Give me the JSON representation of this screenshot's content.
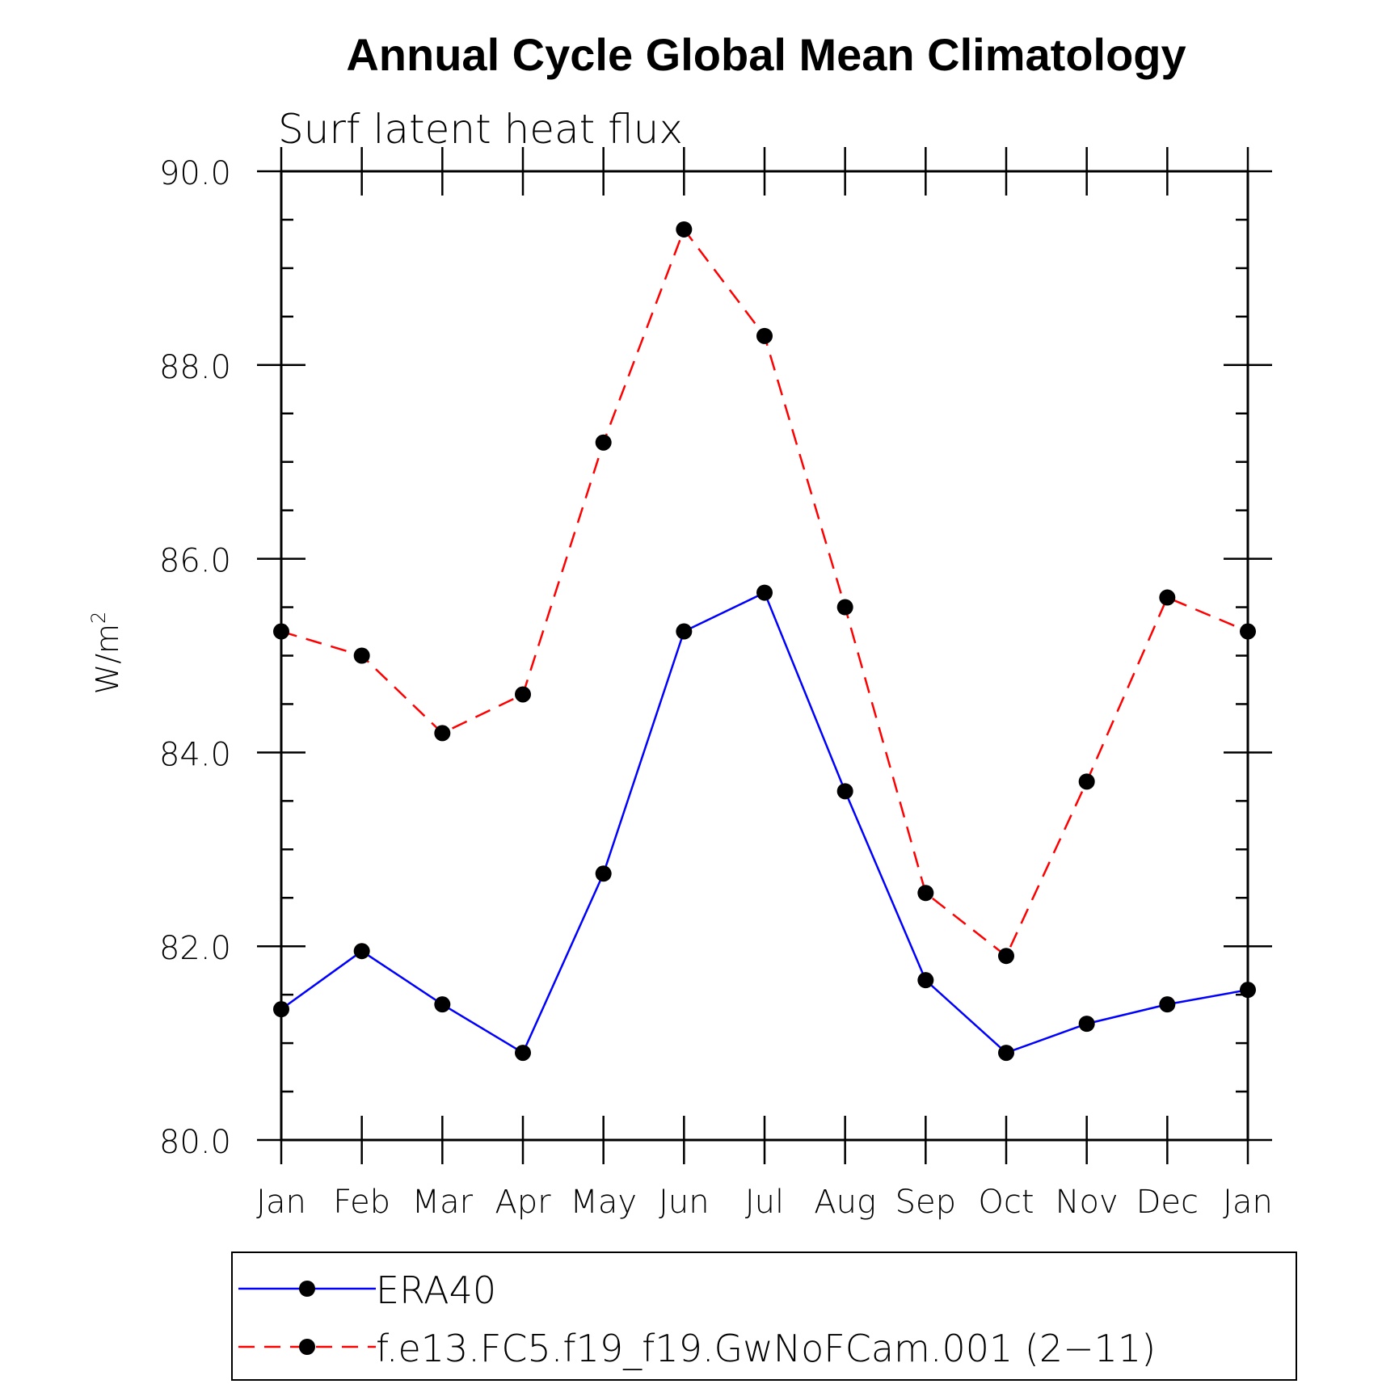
{
  "chart_data": {
    "type": "line",
    "title": "Annual Cycle Global Mean Climatology",
    "subtitle": "Surf latent heat flux",
    "ylabel": "W/m",
    "ylabel_sup": "2",
    "ylim": [
      80.0,
      90.0
    ],
    "yticks": [
      "80.0",
      "82.0",
      "84.0",
      "86.0",
      "88.0",
      "90.0"
    ],
    "categories": [
      "Jan",
      "Feb",
      "Mar",
      "Apr",
      "May",
      "Jun",
      "Jul",
      "Aug",
      "Sep",
      "Oct",
      "Nov",
      "Dec",
      "Jan"
    ],
    "series": [
      {
        "name": "ERA40",
        "color": "#0000ff",
        "style": "solid",
        "values": [
          81.35,
          81.95,
          81.4,
          80.9,
          82.75,
          85.25,
          85.65,
          83.6,
          81.65,
          80.9,
          81.2,
          81.4,
          81.55
        ]
      },
      {
        "name": "f.e13.FC5.f19_f19.GwNoFCam.001 (2−11)",
        "color": "#ff0000",
        "style": "dashed",
        "values": [
          85.25,
          85.0,
          84.2,
          84.6,
          87.2,
          89.4,
          88.3,
          85.5,
          82.55,
          81.9,
          83.7,
          85.6,
          85.25
        ]
      }
    ],
    "legend_position": "bottom",
    "grid": false
  }
}
